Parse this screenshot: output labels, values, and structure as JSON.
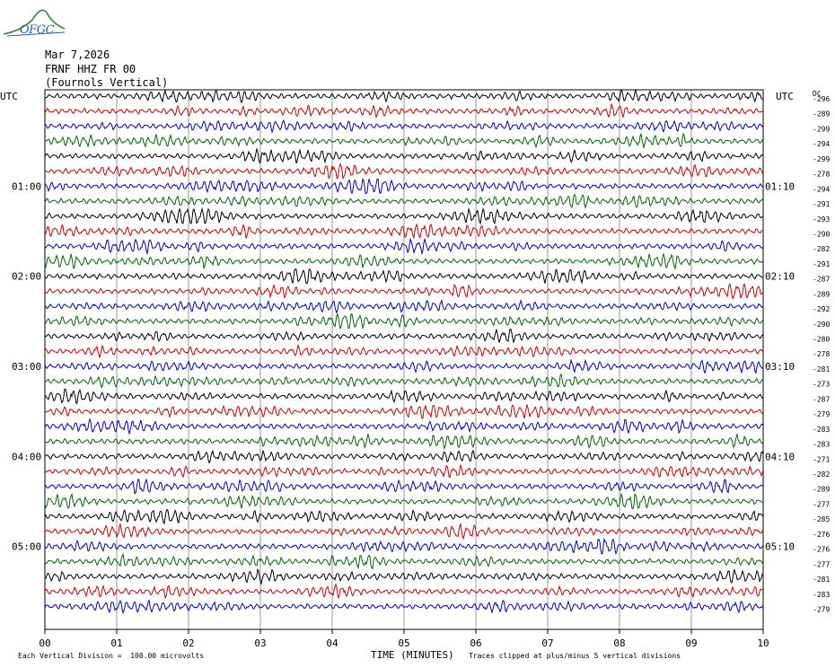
{
  "header": {
    "logo_text": "OFGC",
    "date": "Mar 7,2026",
    "station": "FRNF HHZ FR 00",
    "location": "(Fournols Vertical)"
  },
  "chart_data": {
    "type": "line",
    "title": "",
    "xlabel": "TIME (MINUTES)",
    "x_ticks": [
      "00",
      "01",
      "02",
      "03",
      "04",
      "05",
      "06",
      "07",
      "08",
      "09",
      "10"
    ],
    "xlim": [
      0,
      10
    ],
    "left_axis_title": "UTC",
    "right_axis_title": "UTC",
    "dc_title": "DC",
    "left_hour_labels": [
      {
        "row": 6,
        "label": "01:00"
      },
      {
        "row": 12,
        "label": "02:00"
      },
      {
        "row": 18,
        "label": "03:00"
      },
      {
        "row": 24,
        "label": "04:00"
      },
      {
        "row": 30,
        "label": "05:00"
      }
    ],
    "right_hour_labels": [
      {
        "row": 6,
        "label": "01:10"
      },
      {
        "row": 12,
        "label": "02:10"
      },
      {
        "row": 18,
        "label": "03:10"
      },
      {
        "row": 24,
        "label": "04:10"
      },
      {
        "row": 30,
        "label": "05:10"
      }
    ],
    "trace_colors": [
      "#000000",
      "#cc0000",
      "#0000cc",
      "#006600"
    ],
    "dc_offsets": [
      -296,
      -289,
      -299,
      -294,
      -299,
      -278,
      -294,
      -291,
      -293,
      -290,
      -282,
      -291,
      -287,
      -289,
      -292,
      -290,
      -280,
      -278,
      -281,
      -273,
      -287,
      -279,
      -283,
      -283,
      -271,
      -282,
      -289,
      -277,
      -285,
      -276,
      -276,
      -277,
      -281,
      -283,
      -279
    ],
    "footer_left": "Each Vertical Division =  100.00 microvolts",
    "footer_right": "Traces clipped at plus/minus 5 vertical divisions",
    "vertical_grid": true
  }
}
